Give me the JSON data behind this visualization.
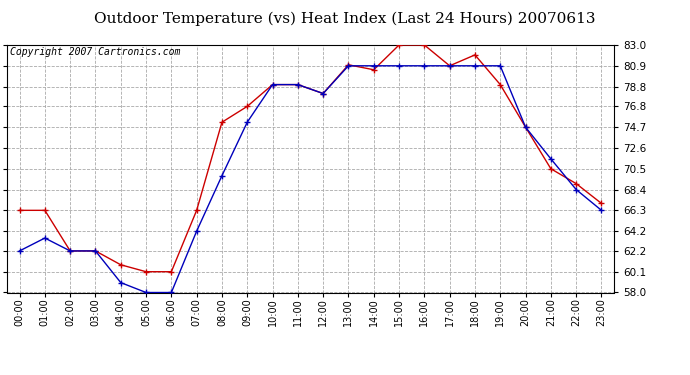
{
  "title": "Outdoor Temperature (vs) Heat Index (Last 24 Hours) 20070613",
  "copyright_text": "Copyright 2007 Cartronics.com",
  "hours": [
    "00:00",
    "01:00",
    "02:00",
    "03:00",
    "04:00",
    "05:00",
    "06:00",
    "07:00",
    "08:00",
    "09:00",
    "10:00",
    "11:00",
    "12:00",
    "13:00",
    "14:00",
    "15:00",
    "16:00",
    "17:00",
    "18:00",
    "19:00",
    "20:00",
    "21:00",
    "22:00",
    "23:00"
  ],
  "temp_blue": [
    62.2,
    63.5,
    62.2,
    62.2,
    59.0,
    58.0,
    58.0,
    64.2,
    69.8,
    75.2,
    79.0,
    79.0,
    78.1,
    80.9,
    80.9,
    80.9,
    80.9,
    80.9,
    80.9,
    80.9,
    74.7,
    71.5,
    68.4,
    66.3
  ],
  "heat_red": [
    66.3,
    66.3,
    62.2,
    62.2,
    60.8,
    60.1,
    60.1,
    66.3,
    75.2,
    76.8,
    79.0,
    79.0,
    78.1,
    81.0,
    80.5,
    83.0,
    83.0,
    80.9,
    82.0,
    79.0,
    74.7,
    70.5,
    69.0,
    67.0
  ],
  "ylim_min": 58.0,
  "ylim_max": 83.0,
  "yticks": [
    58.0,
    60.1,
    62.2,
    64.2,
    66.3,
    68.4,
    70.5,
    72.6,
    74.7,
    76.8,
    78.8,
    80.9,
    83.0
  ],
  "blue_color": "#0000bb",
  "red_color": "#cc0000",
  "bg_color": "#ffffff",
  "plot_bg_color": "#ffffff",
  "grid_color": "#aaaaaa",
  "title_fontsize": 11,
  "copyright_fontsize": 7
}
